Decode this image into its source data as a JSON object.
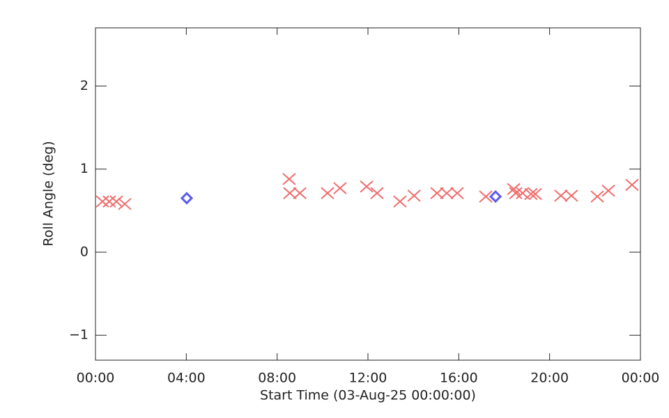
{
  "chart_data": {
    "type": "scatter",
    "xlabel": "Start Time (03-Aug-25 00:00:00)",
    "ylabel": "Roll Angle (deg)",
    "xlim": [
      0,
      24
    ],
    "xticks": [
      {
        "value": 0,
        "label": "00:00"
      },
      {
        "value": 4,
        "label": "04:00"
      },
      {
        "value": 8,
        "label": "08:00"
      },
      {
        "value": 12,
        "label": "12:00"
      },
      {
        "value": 16,
        "label": "16:00"
      },
      {
        "value": 20,
        "label": "20:00"
      },
      {
        "value": 24,
        "label": "00:00"
      }
    ],
    "ylim": [
      -1.3,
      2.7
    ],
    "yticks": [
      {
        "value": -1,
        "label": "−1"
      },
      0,
      1,
      2
    ],
    "series": [
      {
        "color": "#f06c6c",
        "marker": "x",
        "x": [
          0.31,
          0.61,
          0.92,
          1.29,
          8.53,
          8.56,
          9.0,
          10.22,
          10.77,
          11.94,
          12.4,
          13.41,
          14.03,
          15.04,
          15.47,
          15.93,
          17.19,
          18.42,
          18.51,
          18.81,
          19.18,
          19.37,
          20.5,
          20.96,
          22.1,
          22.59,
          23.63
        ],
        "values": [
          0.61,
          0.61,
          0.61,
          0.58,
          0.88,
          0.71,
          0.71,
          0.71,
          0.77,
          0.79,
          0.71,
          0.61,
          0.68,
          0.71,
          0.71,
          0.71,
          0.67,
          0.76,
          0.71,
          0.71,
          0.7,
          0.7,
          0.68,
          0.68,
          0.67,
          0.74,
          0.81
        ]
      },
      {
        "color": "#5a5af0",
        "marker": "diamond",
        "x": [
          4.02,
          17.62
        ],
        "values": [
          0.65,
          0.67
        ]
      }
    ]
  }
}
